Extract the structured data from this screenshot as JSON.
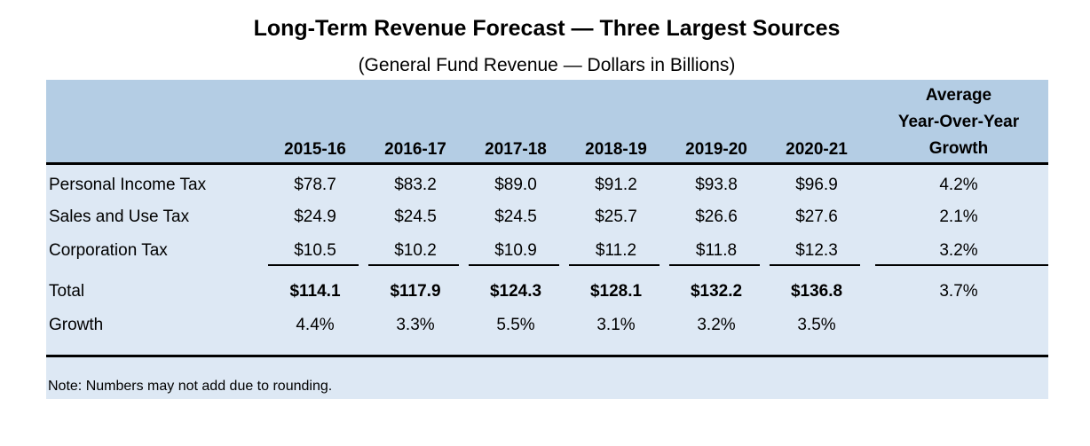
{
  "title": "Long-Term Revenue Forecast — Three Largest Sources",
  "subtitle": "(General Fund Revenue — Dollars in Billions)",
  "colors": {
    "header_band": "#b4cde4",
    "panel": "#dde8f4"
  },
  "table": {
    "year_headers": [
      "2015-16",
      "2016-17",
      "2017-18",
      "2018-19",
      "2019-20",
      "2020-21"
    ],
    "growth_header": [
      "Average",
      "Year-Over-Year",
      "Growth"
    ],
    "rows": [
      {
        "label": "Personal Income Tax",
        "values": [
          "$78.7",
          "$83.2",
          "$89.0",
          "$91.2",
          "$93.8",
          "$96.9"
        ],
        "growth": "4.2%"
      },
      {
        "label": "Sales and Use Tax",
        "values": [
          "$24.9",
          "$24.5",
          "$24.5",
          "$25.7",
          "$26.6",
          "$27.6"
        ],
        "growth": "2.1%"
      },
      {
        "label": "Corporation Tax",
        "values": [
          "$10.5",
          "$10.2",
          "$10.9",
          "$11.2",
          "$11.8",
          "$12.3"
        ],
        "growth": "3.2%"
      }
    ],
    "total": {
      "label": "Total",
      "values": [
        "$114.1",
        "$117.9",
        "$124.3",
        "$128.1",
        "$132.2",
        "$136.8"
      ],
      "growth": "3.7%"
    },
    "growth_row": {
      "label": "Growth",
      "values": [
        "4.4%",
        "3.3%",
        "5.5%",
        "3.1%",
        "3.2%",
        "3.5%"
      ]
    }
  },
  "note": "Note: Numbers may not add due to rounding."
}
